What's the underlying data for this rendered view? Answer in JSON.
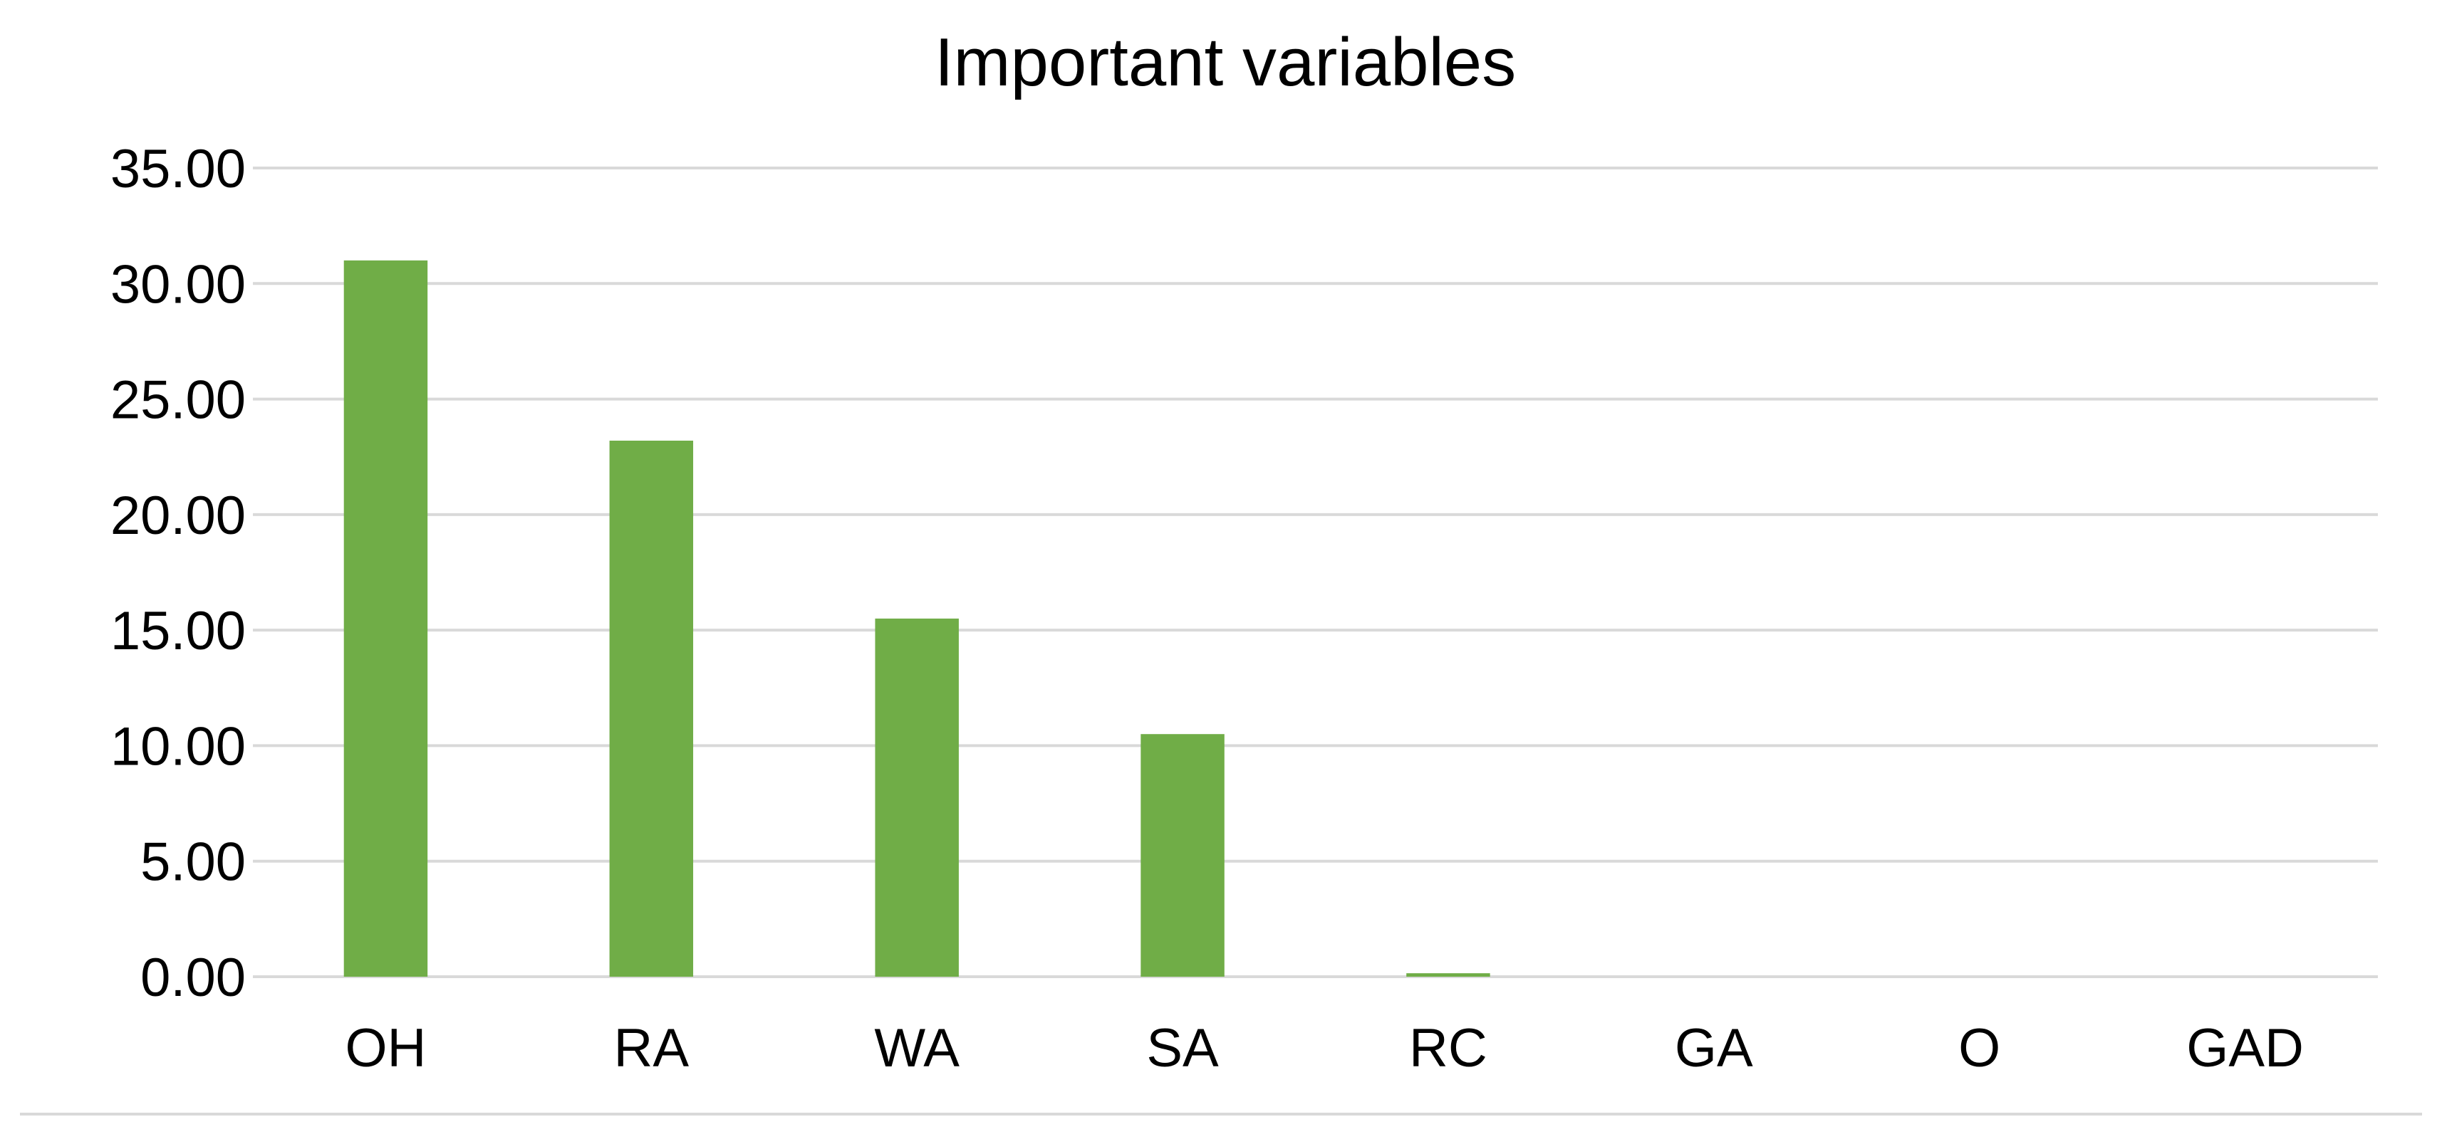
{
  "chart_data": {
    "type": "bar",
    "title": "Important variables",
    "xlabel": "",
    "ylabel": "",
    "categories": [
      "OH",
      "RA",
      "WA",
      "SA",
      "RC",
      "GA",
      "O",
      "GAD"
    ],
    "values": [
      31.0,
      23.2,
      15.5,
      10.5,
      0.15,
      0.0,
      0.0,
      0.0
    ],
    "ylim": [
      0,
      35
    ],
    "yticks": [
      "0.00",
      "5.00",
      "10.00",
      "15.00",
      "20.00",
      "25.00",
      "30.00",
      "35.00"
    ],
    "grid": true,
    "legend": "none",
    "bar_color": "#70ad47"
  }
}
